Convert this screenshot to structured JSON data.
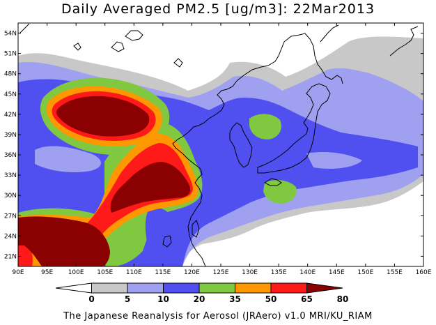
{
  "title": "Daily Averaged PM2.5 [ug/m3]: 22Mar2013",
  "footer": "The Japanese Reanalysis for Aerosol (JRAero) v1.0 MRI/KU_RIAM",
  "map": {
    "lon_range": [
      90,
      160
    ],
    "lat_range": [
      19.5,
      55.5
    ],
    "lon_ticks": [
      "90E",
      "95E",
      "100E",
      "105E",
      "110E",
      "115E",
      "120E",
      "125E",
      "130E",
      "135E",
      "140E",
      "145E",
      "150E",
      "155E",
      "160E"
    ],
    "lat_ticks": [
      "54N",
      "51N",
      "48N",
      "45N",
      "42N",
      "39N",
      "36N",
      "33N",
      "30N",
      "27N",
      "24N",
      "21N"
    ],
    "lat_tick_values": [
      54,
      51,
      48,
      45,
      42,
      39,
      36,
      33,
      30,
      27,
      24,
      21
    ]
  },
  "colorbar": {
    "levels": [
      "0",
      "5",
      "10",
      "20",
      "35",
      "50",
      "65",
      "80"
    ],
    "colors": [
      "#ffffff",
      "#c8c8c8",
      "#a0a0f0",
      "#5050f0",
      "#80c840",
      "#ff9800",
      "#ff1a1a",
      "#8b0000"
    ]
  }
}
